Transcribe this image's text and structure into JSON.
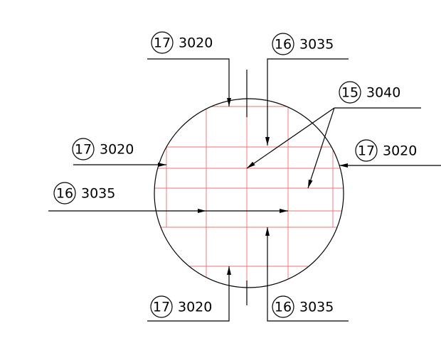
{
  "callouts": [
    {
      "mark": "17",
      "code": "3020"
    },
    {
      "mark": "16",
      "code": "3035"
    },
    {
      "mark": "15",
      "code": "3040"
    },
    {
      "mark": "17",
      "code": "3020"
    },
    {
      "mark": "17",
      "code": "3020"
    },
    {
      "mark": "16",
      "code": "3035"
    },
    {
      "mark": "17",
      "code": "3020"
    },
    {
      "mark": "16",
      "code": "3035"
    }
  ]
}
